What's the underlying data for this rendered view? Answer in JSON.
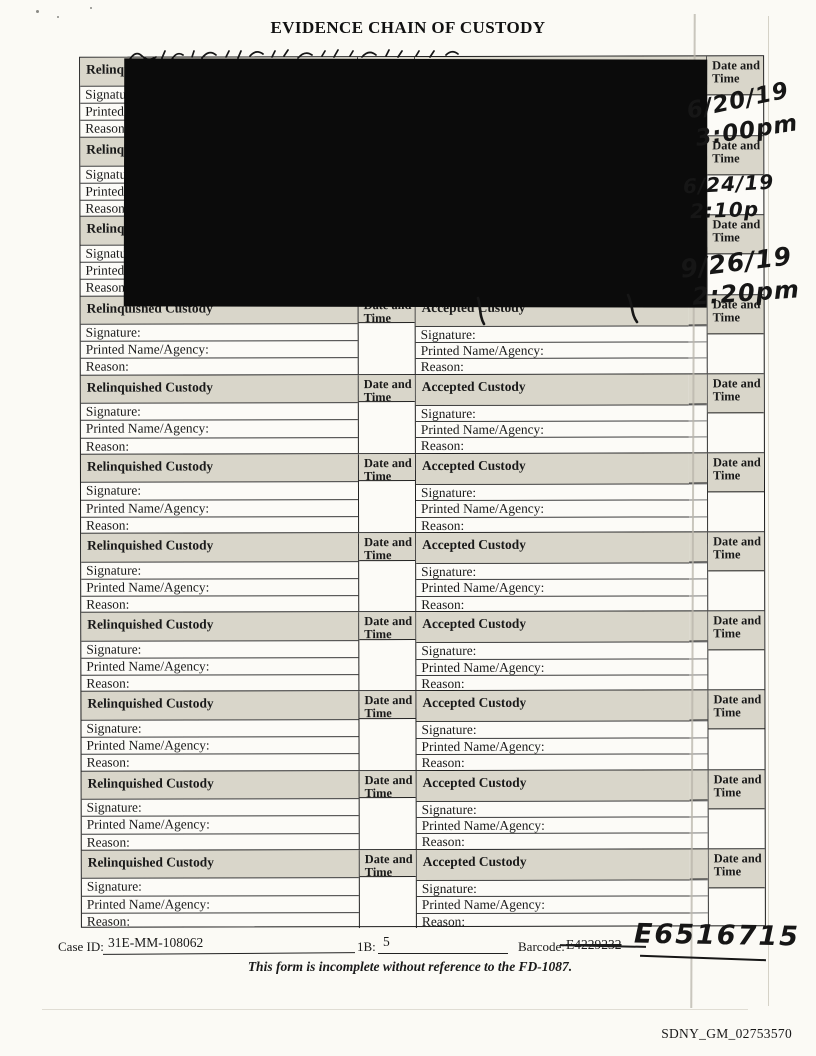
{
  "title": "EVIDENCE CHAIN OF CUSTODY",
  "labels": {
    "relinquished": "Relinquished Custody",
    "accepted": "Accepted Custody",
    "date_time": "Date and Time",
    "signature": "Signature:",
    "printed_name": "Printed Name/Agency:",
    "reason": "Reason:"
  },
  "blocks": [
    {
      "redacted": true,
      "date": "6/20/19",
      "time": "3:00pm"
    },
    {
      "redacted": true,
      "date": "6/24/19",
      "time": "2:10p"
    },
    {
      "redacted": true,
      "date": "9/26/19",
      "time": "2:20pm"
    },
    {
      "redacted": false,
      "date": "",
      "time": ""
    },
    {
      "redacted": false,
      "date": "",
      "time": ""
    },
    {
      "redacted": false,
      "date": "",
      "time": ""
    },
    {
      "redacted": false,
      "date": "",
      "time": ""
    },
    {
      "redacted": false,
      "date": "",
      "time": ""
    },
    {
      "redacted": false,
      "date": "",
      "time": ""
    },
    {
      "redacted": false,
      "date": "",
      "time": ""
    },
    {
      "redacted": false,
      "date": "",
      "time": ""
    }
  ],
  "footer": {
    "case_id_label": "Case ID:",
    "case_id_value": "31E-MM-108062",
    "ib_label": "1B:",
    "ib_value": "5",
    "barcode_label": "Barcode:",
    "barcode_struck": "E4229232",
    "barcode_handwritten": "E6516715",
    "note": "This form is incomplete without reference to the FD-1087."
  },
  "bates_number": "SDNY_GM_02753570",
  "colors": {
    "header_shade": "#d9d6ca",
    "redaction": "#0b0b0b",
    "ink": "#161616"
  }
}
